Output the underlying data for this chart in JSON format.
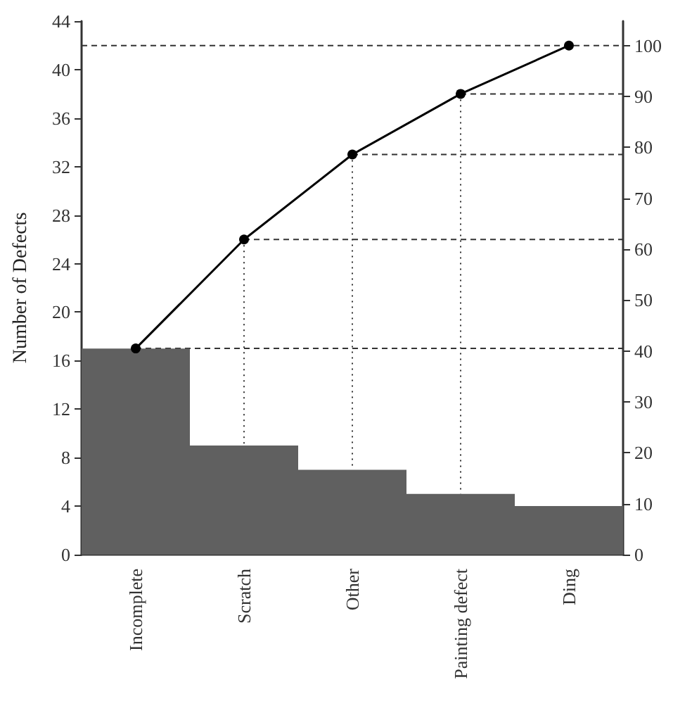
{
  "chart_data": {
    "type": "bar",
    "ylabel": "Number of Defects",
    "categories": [
      "Incomplete",
      "Scratch",
      "Other",
      "Painting defect",
      "Ding"
    ],
    "series": [
      {
        "color": "#606060",
        "values": [
          17,
          9,
          7,
          5,
          4
        ]
      },
      {
        "type": "line",
        "axis": "y2",
        "color": "#000000",
        "values": [
          40.5,
          61.9,
          78.6,
          90.5,
          100
        ]
      }
    ],
    "ylim": [
      0,
      44
    ],
    "yticks": [
      0,
      4,
      8,
      12,
      16,
      20,
      24,
      28,
      32,
      36,
      40,
      44
    ],
    "y2lim": [
      0,
      104.8
    ],
    "y2ticks": [
      0,
      10,
      20,
      30,
      40,
      50,
      60,
      70,
      80,
      90,
      100
    ],
    "ref_lines": [
      {
        "axis": "y2",
        "value": 40.5,
        "line_style": "dashed"
      },
      {
        "axis": "y2",
        "value": 61.9,
        "line_style": "dashed"
      },
      {
        "axis": "y2",
        "value": 78.6,
        "line_style": "dashed"
      },
      {
        "axis": "y2",
        "value": 90.5,
        "line_style": "dashed"
      },
      {
        "axis": "y2",
        "value": 100,
        "line_style": "dashed"
      },
      {
        "axis": "x",
        "value": "Scratch",
        "line_style": "dotted"
      },
      {
        "axis": "x",
        "value": "Other",
        "line_style": "dotted"
      },
      {
        "axis": "x",
        "value": "Painting defect",
        "line_style": "dotted"
      }
    ],
    "grid": false,
    "marker": "circle",
    "line_style": "solid"
  }
}
